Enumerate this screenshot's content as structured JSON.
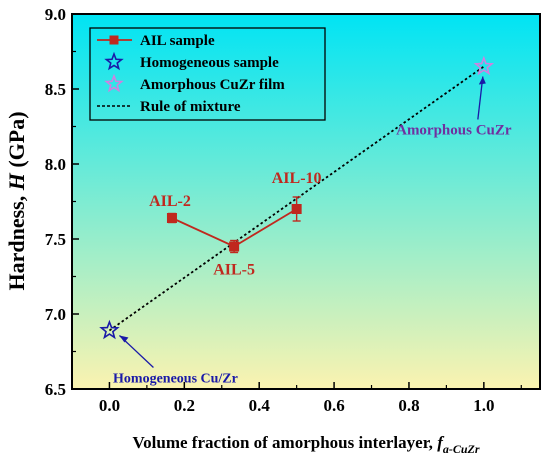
{
  "chart_data": {
    "type": "scatter",
    "xlabel": "Volume fraction of amorphous interlayer, ",
    "xlabel_italic": "f",
    "xlabel_sub": "a-CuZr",
    "ylabel": "Hardness, ",
    "ylabel_italic": "H",
    "ylabel_unit": " (GPa)",
    "xlim": [
      -0.1,
      1.15
    ],
    "ylim": [
      6.5,
      9.0
    ],
    "xticks": [
      "0.0",
      "0.2",
      "0.4",
      "0.6",
      "0.8",
      "1.0"
    ],
    "yticks": [
      "6.5",
      "7.0",
      "7.5",
      "8.0",
      "8.5",
      "9.0"
    ],
    "xtick_values": [
      0.0,
      0.2,
      0.4,
      0.6,
      0.8,
      1.0
    ],
    "ytick_values": [
      6.5,
      7.0,
      7.5,
      8.0,
      8.5,
      9.0
    ],
    "legend_position": "top-left",
    "background_gradient": [
      "#00e4f4",
      "#fbf3b0"
    ],
    "series": [
      {
        "name": "AIL sample",
        "color": "#c0281e",
        "marker": "square",
        "line": true,
        "x": [
          0.167,
          0.333,
          0.5
        ],
        "y": [
          7.64,
          7.45,
          7.7
        ],
        "err": [
          0.03,
          0.04,
          0.08
        ]
      },
      {
        "name": "Homogeneous sample",
        "color": "#1a1aa8",
        "marker": "star",
        "x": [
          0.0
        ],
        "y": [
          6.89
        ]
      },
      {
        "name": "Amorphous CuZr film",
        "color": "#d080e0",
        "marker": "star",
        "x": [
          1.0
        ],
        "y": [
          8.65
        ]
      },
      {
        "name": "Rule of mixture",
        "color": "#000000",
        "linestyle": "dotted",
        "x": [
          0.0,
          1.0
        ],
        "y": [
          6.89,
          8.65
        ]
      }
    ],
    "annotations": [
      {
        "text": "AIL-2",
        "color": "#c0281e",
        "x": 0.167,
        "y": 7.64
      },
      {
        "text": "AIL-5",
        "color": "#c0281e",
        "x": 0.333,
        "y": 7.45
      },
      {
        "text": "AIL-10",
        "color": "#c0281e",
        "x": 0.5,
        "y": 7.7
      },
      {
        "text": "Amorphous CuZr",
        "color": "#7030a0",
        "x": 1.0,
        "y": 8.65
      },
      {
        "text": "Homogeneous Cu/Zr",
        "color": "#1a1aa8",
        "x": 0.0,
        "y": 6.89
      }
    ]
  }
}
